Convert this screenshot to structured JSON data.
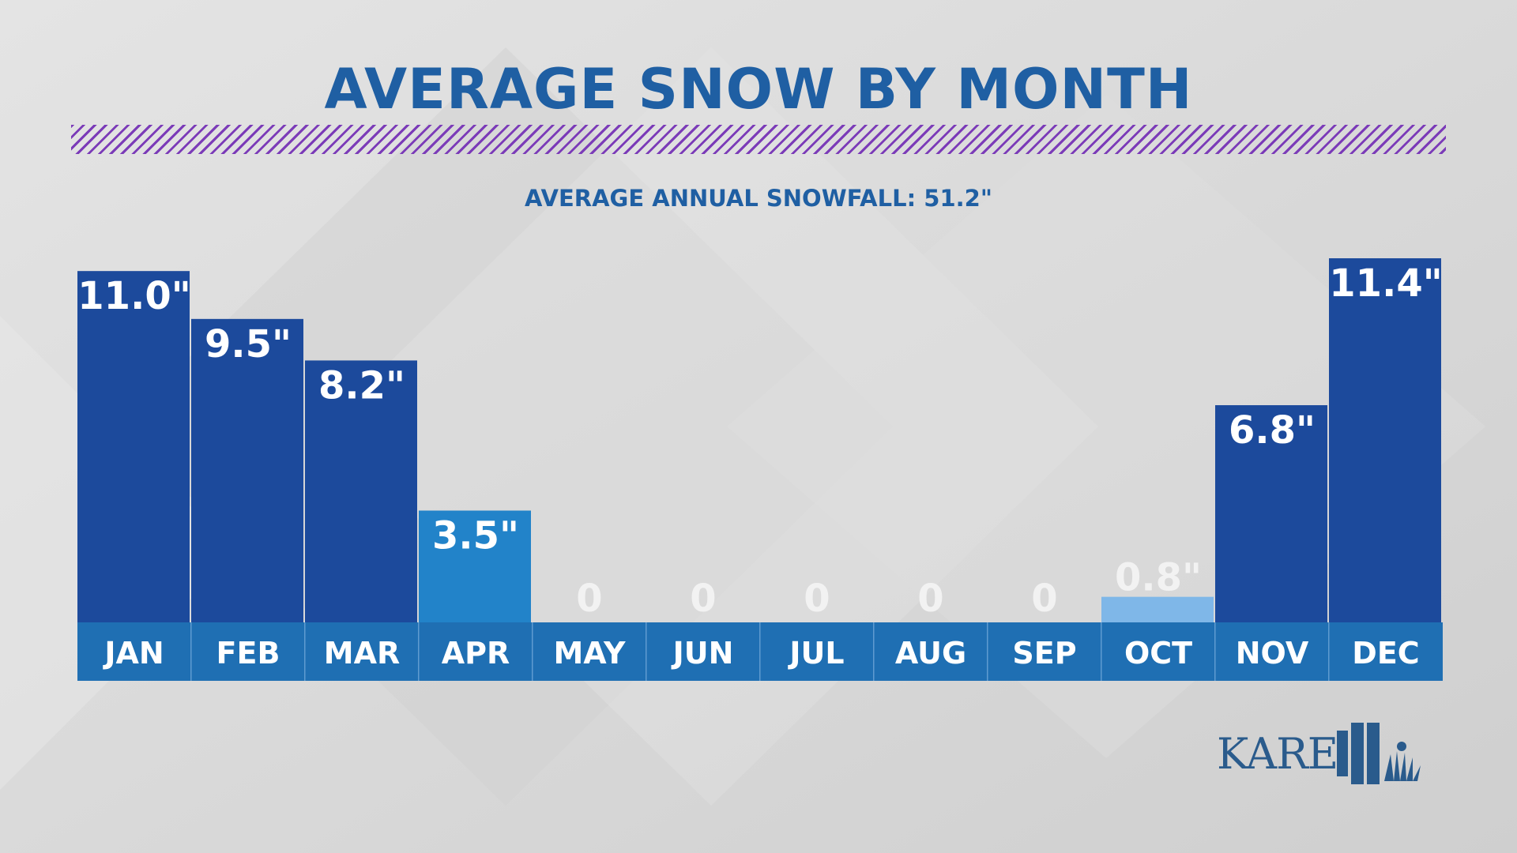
{
  "title": "AVERAGE SNOW BY MONTH",
  "subtitle": "AVERAGE ANNUAL SNOWFALL: 51.2\"",
  "logo_text": "KARE",
  "colors": {
    "title": "#1f5fa3",
    "bar_main": "#1c4a9c",
    "bar_mid": "#2283c9",
    "bar_light": "#7fb7e8",
    "axis_band": "#1f6fb3",
    "label_light": "#f2f2f2",
    "stripe": "#7b3bb8"
  },
  "chart_data": {
    "type": "bar",
    "title": "AVERAGE SNOW BY MONTH",
    "subtitle": "AVERAGE ANNUAL SNOWFALL: 51.2\"",
    "xlabel": "",
    "ylabel": "",
    "ylim": [
      0,
      11.4
    ],
    "unit": "in",
    "categories": [
      "JAN",
      "FEB",
      "MAR",
      "APR",
      "MAY",
      "JUN",
      "JUL",
      "AUG",
      "SEP",
      "OCT",
      "NOV",
      "DEC"
    ],
    "values": [
      11.0,
      9.5,
      8.2,
      3.5,
      0,
      0,
      0,
      0,
      0,
      0.8,
      6.8,
      11.4
    ],
    "labels": [
      "11.0\"",
      "9.5\"",
      "8.2\"",
      "3.5\"",
      "0",
      "0",
      "0",
      "0",
      "0",
      "0.8\"",
      "6.8\"",
      "11.4\""
    ],
    "bar_styles": [
      "main",
      "main",
      "main",
      "mid",
      "main",
      "main",
      "main",
      "main",
      "main",
      "light",
      "main",
      "main"
    ],
    "grid": false,
    "legend": "none"
  }
}
